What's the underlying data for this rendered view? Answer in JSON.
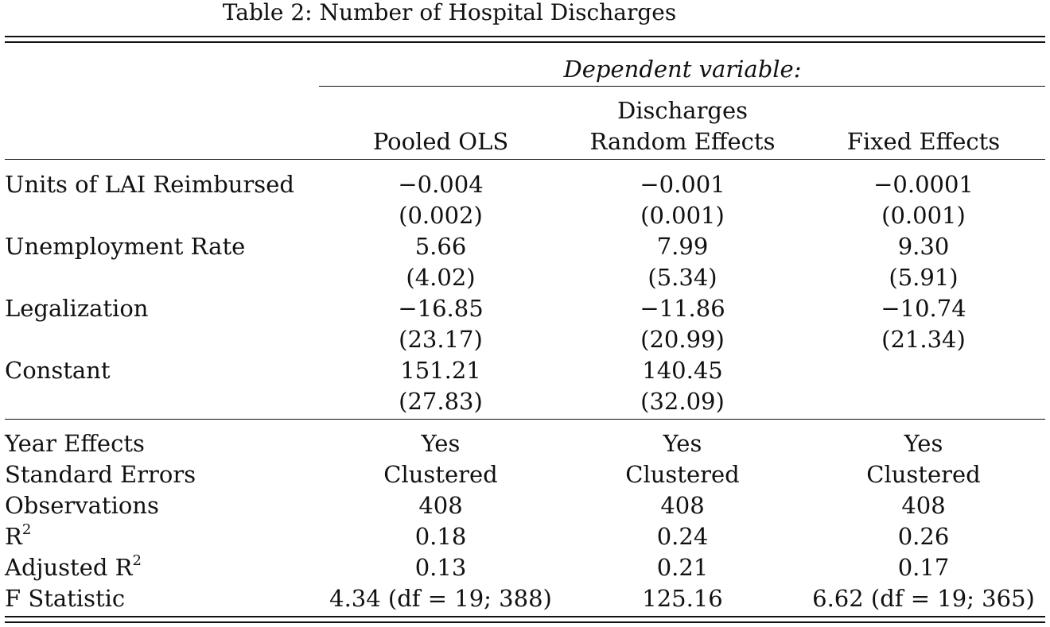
{
  "title": "Table 2: Number of Hospital Discharges",
  "header": {
    "dependent_variable": "Dependent variable:",
    "dependent_name": "Discharges",
    "columns": [
      "Pooled OLS",
      "Random Effects",
      "Fixed Effects"
    ]
  },
  "coefficients": [
    {
      "label": "Units of LAI Reimbursed",
      "values": [
        "−0.004",
        "−0.001",
        "−0.0001"
      ],
      "se": [
        "(0.002)",
        "(0.001)",
        "(0.001)"
      ]
    },
    {
      "label": "Unemployment Rate",
      "values": [
        "5.66",
        "7.99",
        "9.30"
      ],
      "se": [
        "(4.02)",
        "(5.34)",
        "(5.91)"
      ]
    },
    {
      "label": "Legalization",
      "values": [
        "−16.85",
        "−11.86",
        "−10.74"
      ],
      "se": [
        "(23.17)",
        "(20.99)",
        "(21.34)"
      ]
    },
    {
      "label": "Constant",
      "values": [
        "151.21",
        "140.45",
        ""
      ],
      "se": [
        "(27.83)",
        "(32.09)",
        ""
      ]
    }
  ],
  "stats": [
    {
      "label": "Year Effects",
      "values": [
        "Yes",
        "Yes",
        "Yes"
      ]
    },
    {
      "label": "Standard Errors",
      "values": [
        "Clustered",
        "Clustered",
        "Clustered"
      ]
    },
    {
      "label": "Observations",
      "values": [
        "408",
        "408",
        "408"
      ]
    },
    {
      "label": "R",
      "label_sup": "2",
      "values": [
        "0.18",
        "0.24",
        "0.26"
      ]
    },
    {
      "label": "Adjusted R",
      "label_sup": "2",
      "values": [
        "0.13",
        "0.21",
        "0.17"
      ]
    },
    {
      "label": "F Statistic",
      "values": [
        "4.34 (df = 19; 388)",
        "125.16",
        "6.62 (df = 19; 365)"
      ]
    }
  ]
}
